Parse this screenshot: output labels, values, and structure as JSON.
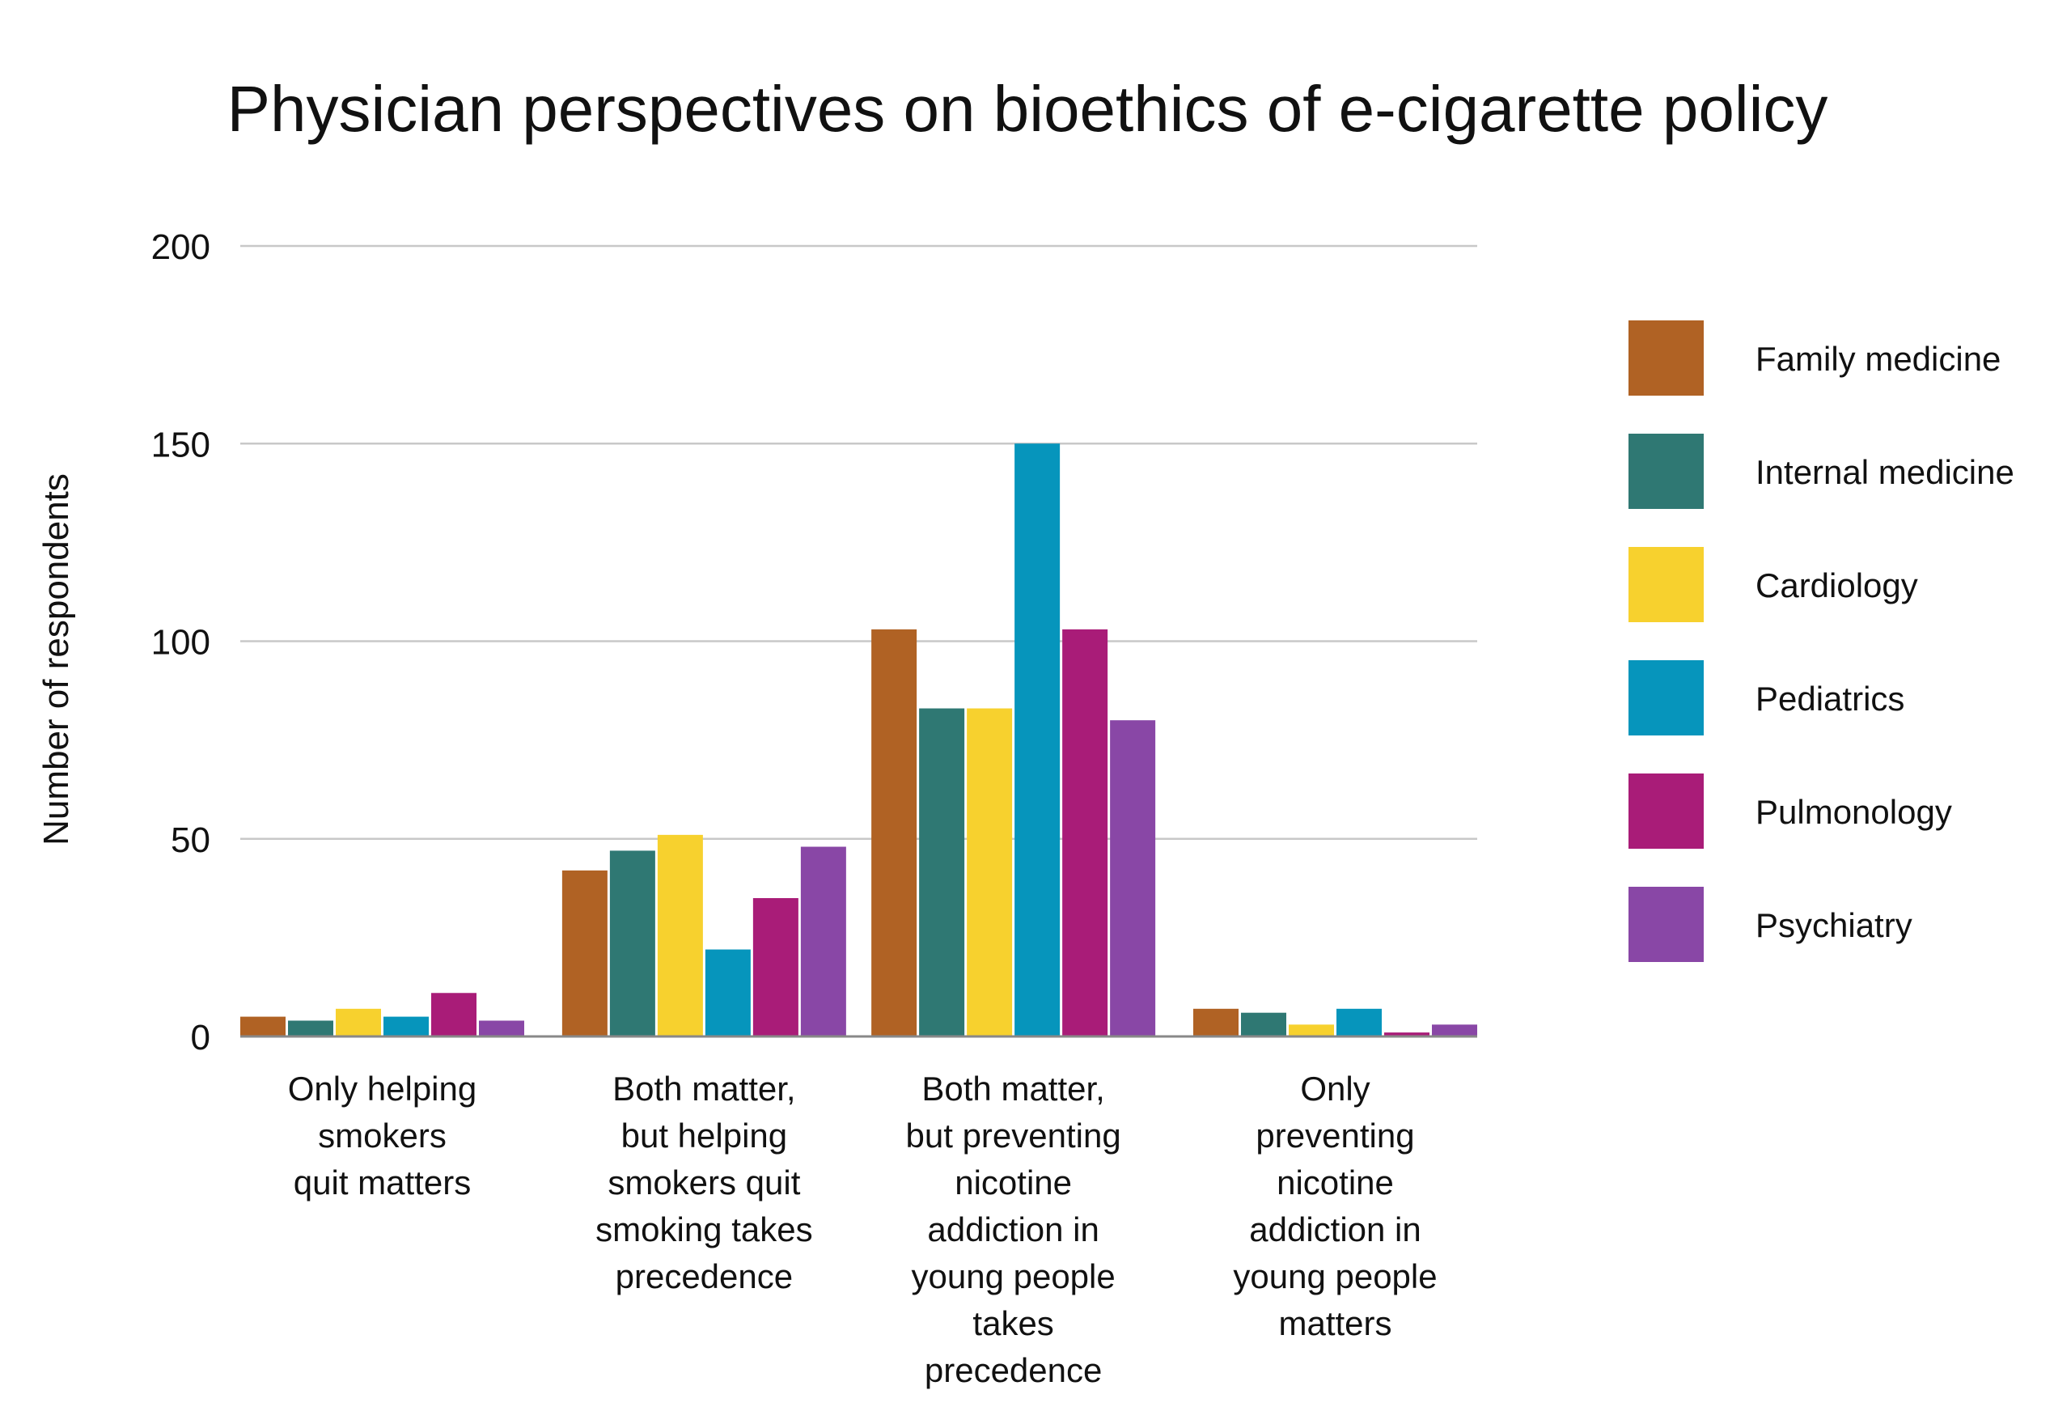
{
  "chart_data": {
    "type": "bar",
    "title": "Physician perspectives on bioethics of e-cigarette policy",
    "xlabel": "",
    "ylabel": "Number of respondents",
    "ylim": [
      0,
      200
    ],
    "yticks": [
      0,
      50,
      100,
      150,
      200
    ],
    "grid": true,
    "legend_position": "right",
    "categories": [
      [
        "Only helping",
        "smokers",
        "quit matters"
      ],
      [
        "Both matter,",
        "but helping",
        "smokers quit",
        "smoking takes",
        "precedence"
      ],
      [
        "Both matter,",
        "but preventing",
        "nicotine",
        "addiction in",
        "young people",
        "takes",
        "precedence"
      ],
      [
        "Only",
        "preventing",
        "nicotine",
        "addiction in",
        "young people",
        "matters"
      ]
    ],
    "series": [
      {
        "name": "Family medicine",
        "color": "#B06224",
        "values": [
          5,
          42,
          103,
          7
        ]
      },
      {
        "name": "Internal medicine",
        "color": "#2F7873",
        "values": [
          4,
          47,
          83,
          6
        ]
      },
      {
        "name": "Cardiology",
        "color": "#F7D12E",
        "values": [
          7,
          51,
          83,
          3
        ]
      },
      {
        "name": "Pediatrics",
        "color": "#0695BC",
        "values": [
          5,
          22,
          150,
          7
        ]
      },
      {
        "name": "Pulmonology",
        "color": "#A91C78",
        "values": [
          11,
          35,
          103,
          1
        ]
      },
      {
        "name": "Psychiatry",
        "color": "#8947A6",
        "values": [
          4,
          48,
          80,
          3
        ]
      }
    ]
  }
}
